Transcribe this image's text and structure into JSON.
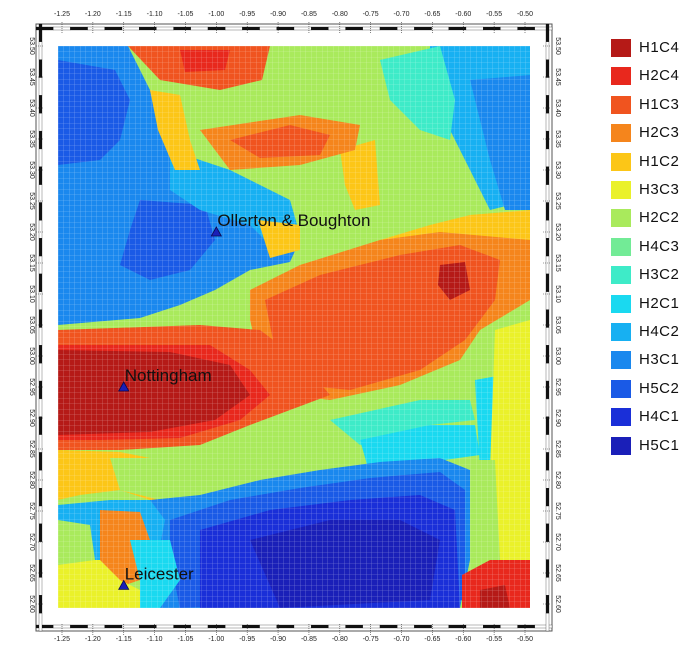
{
  "map": {
    "x_ticks": [
      "-1.25",
      "-1.20",
      "-1.15",
      "-1.10",
      "-1.05",
      "-1.00",
      "-0.95",
      "-0.90",
      "-0.85",
      "-0.80",
      "-0.75",
      "-0.70",
      "-0.65",
      "-0.60",
      "-0.55",
      "-0.50"
    ],
    "y_ticks": [
      "52.60",
      "52.65",
      "52.70",
      "52.75",
      "52.80",
      "52.85",
      "52.90",
      "52.95",
      "53.00",
      "53.05",
      "53.10",
      "53.15",
      "53.20",
      "53.25",
      "53.30",
      "53.35",
      "53.40",
      "53.45",
      "53.50"
    ],
    "lon_range": [
      -1.27,
      -0.49
    ],
    "lat_range": [
      52.58,
      53.52
    ],
    "places": [
      {
        "name": "Ollerton & Boughton",
        "lon": -1.0,
        "lat": 53.2
      },
      {
        "name": "Nottingham",
        "lon": -1.15,
        "lat": 52.95
      },
      {
        "name": "Leicester",
        "lon": -1.15,
        "lat": 52.63
      }
    ]
  },
  "legend": [
    {
      "label": "H1C4",
      "color": "#b51a17"
    },
    {
      "label": "H2C4",
      "color": "#e8281d"
    },
    {
      "label": "H1C3",
      "color": "#f0541f"
    },
    {
      "label": "H2C3",
      "color": "#f5851c"
    },
    {
      "label": "H1C2",
      "color": "#fcc617"
    },
    {
      "label": "H3C3",
      "color": "#eaf12a"
    },
    {
      "label": "H2C2",
      "color": "#a9ea5c"
    },
    {
      "label": "H4C3",
      "color": "#72eb96"
    },
    {
      "label": "H3C2",
      "color": "#3eebc8"
    },
    {
      "label": "H2C1",
      "color": "#1ad9f0"
    },
    {
      "label": "H4C2",
      "color": "#17b0f2"
    },
    {
      "label": "H3C1",
      "color": "#1a88ee"
    },
    {
      "label": "H5C2",
      "color": "#1a5ae6"
    },
    {
      "label": "H4C1",
      "color": "#1a2fd8"
    },
    {
      "label": "H5C1",
      "color": "#1a1fb8"
    }
  ]
}
